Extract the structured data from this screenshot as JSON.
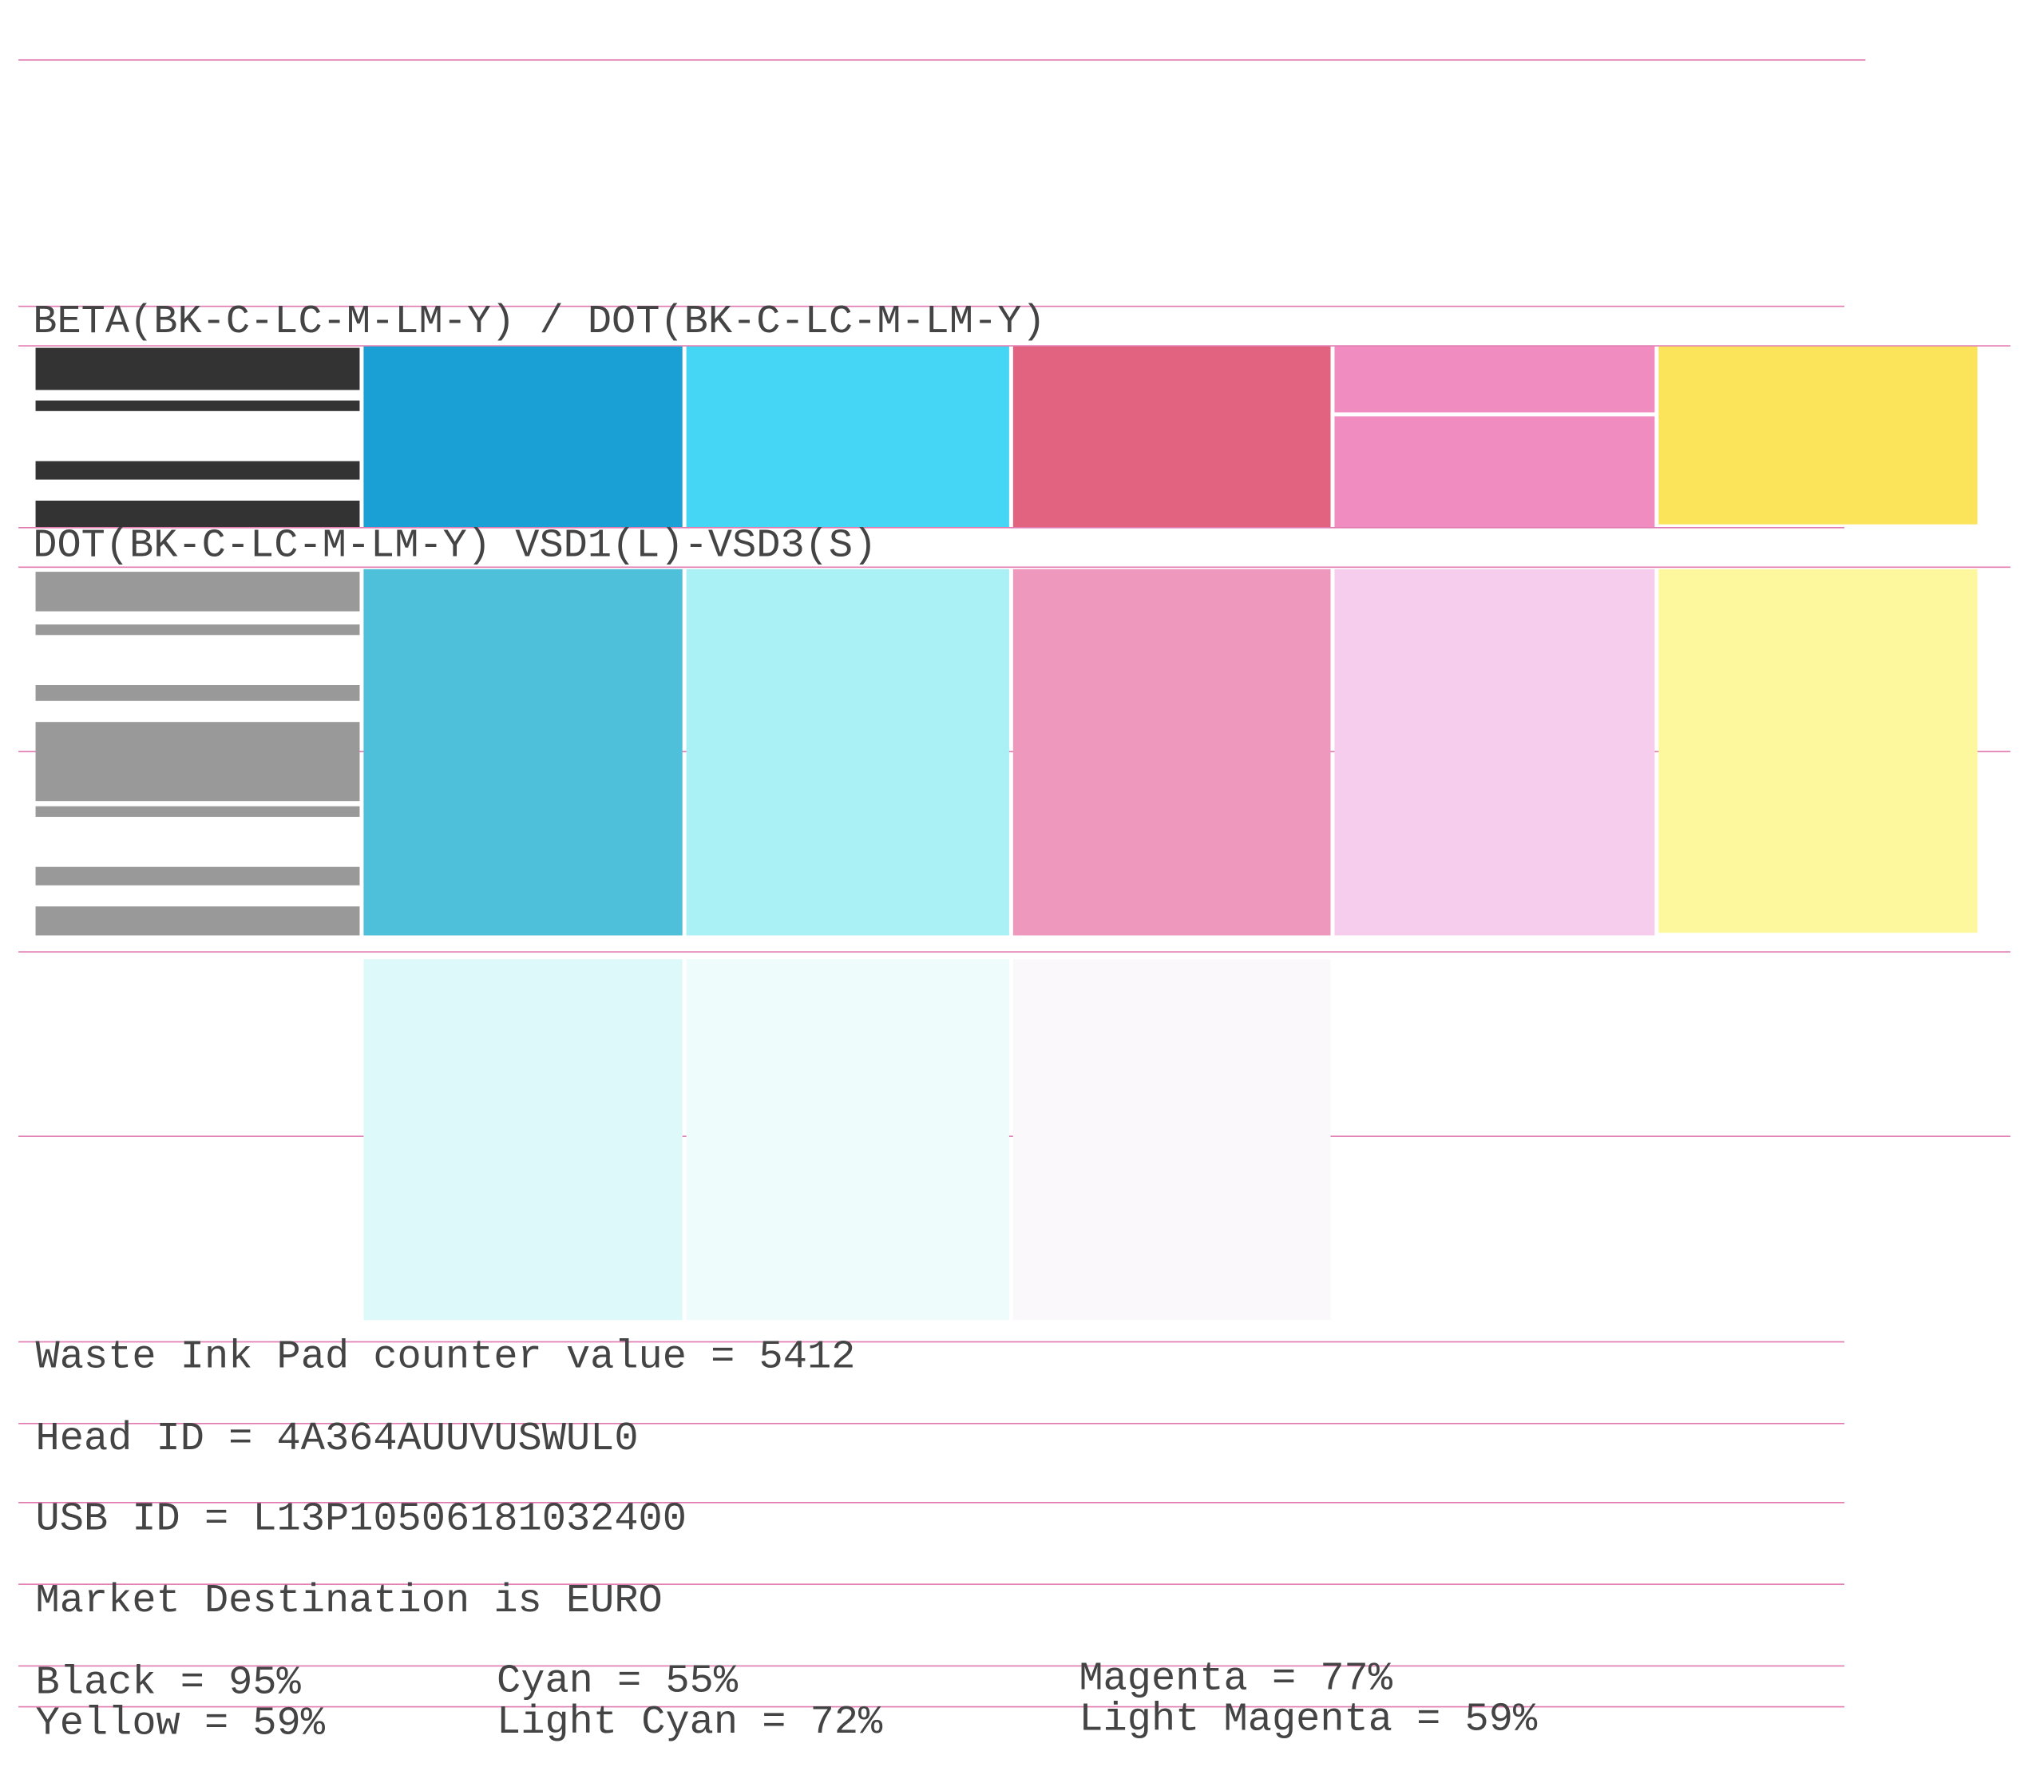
{
  "sections": [
    {
      "label": "BETA(BK-C-LC-M-LM-Y) / DOT(BK-C-LC-M-LM-Y)"
    },
    {
      "label": "DOT(BK-C-LC-M-LM-Y) VSD1(L)-VSD3(S)"
    }
  ],
  "info": [
    "Waste Ink Pad counter value = 5412",
    "Head ID = 4A364AUUVUSWUL0",
    "USB ID = L13P10506181032400",
    "Market Destination is EURO"
  ],
  "ink_levels": [
    "Black = 95%",
    "Cyan = 55%",
    "Magenta = 77%",
    "Yellow = 59%",
    "Light Cyan = 72%",
    "Light Magenta = 59%"
  ]
}
